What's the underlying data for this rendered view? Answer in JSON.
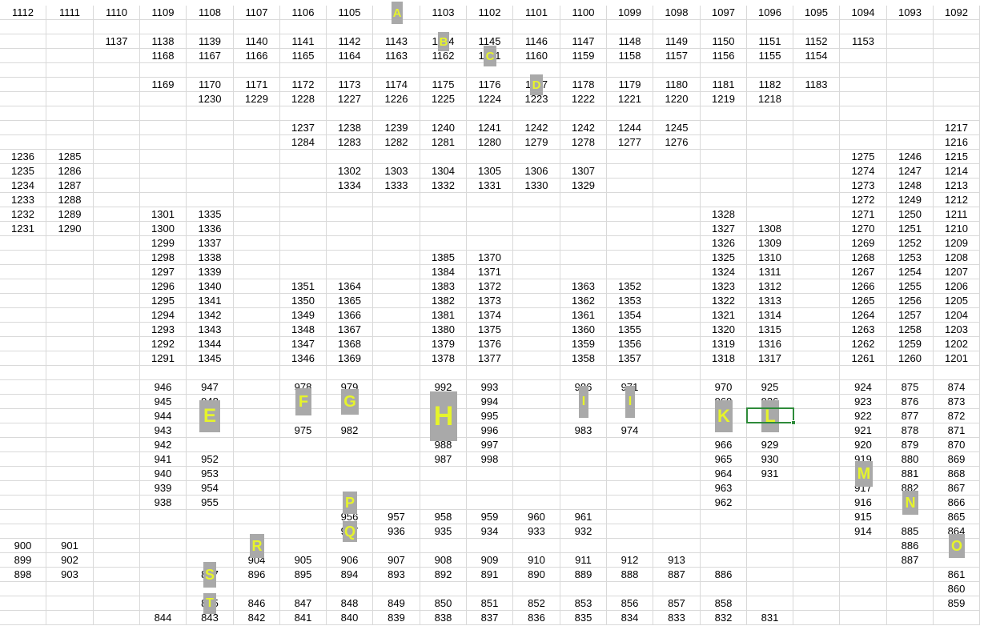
{
  "grid": {
    "column_count": 21,
    "row_count": 43,
    "last_column_partial": true,
    "gridline_color": "#d9d9d9"
  },
  "rows": [
    [
      "1112",
      "1111",
      "1110",
      "1109",
      "1108",
      "1107",
      "1106",
      "1105",
      "",
      "1103",
      "1102",
      "1101",
      "1100",
      "1099",
      "1098",
      "1097",
      "1096",
      "1095",
      "1094",
      "1093",
      "1092"
    ],
    [],
    [
      "",
      "",
      "1137",
      "1138",
      "1139",
      "1140",
      "1141",
      "1142",
      "1143",
      "1144",
      "1145",
      "1146",
      "1147",
      "1148",
      "1149",
      "1150",
      "1151",
      "1152",
      "1153"
    ],
    [
      "",
      "",
      "",
      "1168",
      "1167",
      "1166",
      "1165",
      "1164",
      "1163",
      "1162",
      "1161",
      "1160",
      "1159",
      "1158",
      "1157",
      "1156",
      "1155",
      "1154"
    ],
    [],
    [
      "",
      "",
      "",
      "1169",
      "1170",
      "1171",
      "1172",
      "1173",
      "1174",
      "1175",
      "1176",
      "1177",
      "1178",
      "1179",
      "1180",
      "1181",
      "1182",
      "1183"
    ],
    [
      "",
      "",
      "",
      "",
      "1230",
      "1229",
      "1228",
      "1227",
      "1226",
      "1225",
      "1224",
      "1223",
      "1222",
      "1221",
      "1220",
      "1219",
      "1218"
    ],
    [],
    [
      "",
      "",
      "",
      "",
      "",
      "",
      "1237",
      "1238",
      "1239",
      "1240",
      "1241",
      "1242",
      "1242",
      "1244",
      "1245",
      "",
      "",
      "",
      "",
      "",
      "1217"
    ],
    [
      "",
      "",
      "",
      "",
      "",
      "",
      "1284",
      "1283",
      "1282",
      "1281",
      "1280",
      "1279",
      "1278",
      "1277",
      "1276",
      "",
      "",
      "",
      "",
      "",
      "1216"
    ],
    [
      "1236",
      "1285",
      "",
      "",
      "",
      "",
      "",
      "",
      "",
      "",
      "",
      "",
      "",
      "",
      "",
      "",
      "",
      "",
      "1275",
      "1246",
      "1215"
    ],
    [
      "1235",
      "1286",
      "",
      "",
      "",
      "",
      "",
      "1302",
      "1303",
      "1304",
      "1305",
      "1306",
      "1307",
      "",
      "",
      "",
      "",
      "",
      "1274",
      "1247",
      "1214"
    ],
    [
      "1234",
      "1287",
      "",
      "",
      "",
      "",
      "",
      "1334",
      "1333",
      "1332",
      "1331",
      "1330",
      "1329",
      "",
      "",
      "",
      "",
      "",
      "1273",
      "1248",
      "1213"
    ],
    [
      "1233",
      "1288",
      "",
      "",
      "",
      "",
      "",
      "",
      "",
      "",
      "",
      "",
      "",
      "",
      "",
      "",
      "",
      "",
      "1272",
      "1249",
      "1212"
    ],
    [
      "1232",
      "1289",
      "",
      "1301",
      "1335",
      "",
      "",
      "",
      "",
      "",
      "",
      "",
      "",
      "",
      "",
      "1328",
      "",
      "",
      "1271",
      "1250",
      "1211"
    ],
    [
      "1231",
      "1290",
      "",
      "1300",
      "1336",
      "",
      "",
      "",
      "",
      "",
      "",
      "",
      "",
      "",
      "",
      "1327",
      "1308",
      "",
      "1270",
      "1251",
      "1210"
    ],
    [
      "",
      "",
      "",
      "1299",
      "1337",
      "",
      "",
      "",
      "",
      "",
      "",
      "",
      "",
      "",
      "",
      "1326",
      "1309",
      "",
      "1269",
      "1252",
      "1209"
    ],
    [
      "",
      "",
      "",
      "1298",
      "1338",
      "",
      "",
      "",
      "",
      "1385",
      "1370",
      "",
      "",
      "",
      "",
      "1325",
      "1310",
      "",
      "1268",
      "1253",
      "1208"
    ],
    [
      "",
      "",
      "",
      "1297",
      "1339",
      "",
      "",
      "",
      "",
      "1384",
      "1371",
      "",
      "",
      "",
      "",
      "1324",
      "1311",
      "",
      "1267",
      "1254",
      "1207"
    ],
    [
      "",
      "",
      "",
      "1296",
      "1340",
      "",
      "1351",
      "1364",
      "",
      "1383",
      "1372",
      "",
      "1363",
      "1352",
      "",
      "1323",
      "1312",
      "",
      "1266",
      "1255",
      "1206"
    ],
    [
      "",
      "",
      "",
      "1295",
      "1341",
      "",
      "1350",
      "1365",
      "",
      "1382",
      "1373",
      "",
      "1362",
      "1353",
      "",
      "1322",
      "1313",
      "",
      "1265",
      "1256",
      "1205"
    ],
    [
      "",
      "",
      "",
      "1294",
      "1342",
      "",
      "1349",
      "1366",
      "",
      "1381",
      "1374",
      "",
      "1361",
      "1354",
      "",
      "1321",
      "1314",
      "",
      "1264",
      "1257",
      "1204"
    ],
    [
      "",
      "",
      "",
      "1293",
      "1343",
      "",
      "1348",
      "1367",
      "",
      "1380",
      "1375",
      "",
      "1360",
      "1355",
      "",
      "1320",
      "1315",
      "",
      "1263",
      "1258",
      "1203"
    ],
    [
      "",
      "",
      "",
      "1292",
      "1344",
      "",
      "1347",
      "1368",
      "",
      "1379",
      "1376",
      "",
      "1359",
      "1356",
      "",
      "1319",
      "1316",
      "",
      "1262",
      "1259",
      "1202"
    ],
    [
      "",
      "",
      "",
      "1291",
      "1345",
      "",
      "1346",
      "1369",
      "",
      "1378",
      "1377",
      "",
      "1358",
      "1357",
      "",
      "1318",
      "1317",
      "",
      "1261",
      "1260",
      "1201"
    ],
    [],
    [
      "",
      "",
      "",
      "946",
      "947",
      "",
      "978",
      "979",
      "",
      "992",
      "993",
      "",
      "986",
      "971",
      "",
      "970",
      "925",
      "",
      "924",
      "875",
      "874"
    ],
    [
      "",
      "",
      "",
      "945",
      "948",
      "",
      "",
      "",
      "",
      "",
      "994",
      "",
      "",
      "",
      "",
      "969",
      "926",
      "",
      "923",
      "876",
      "873"
    ],
    [
      "",
      "",
      "",
      "944",
      "",
      "",
      "",
      "",
      "",
      "",
      "995",
      "",
      "",
      "",
      "",
      "",
      "",
      "",
      "922",
      "877",
      "872"
    ],
    [
      "",
      "",
      "",
      "943",
      "",
      "",
      "975",
      "982",
      "",
      "",
      "996",
      "",
      "983",
      "974",
      "",
      "",
      "",
      "",
      "921",
      "878",
      "871"
    ],
    [
      "",
      "",
      "",
      "942",
      "",
      "",
      "",
      "",
      "",
      "988",
      "997",
      "",
      "",
      "",
      "",
      "966",
      "929",
      "",
      "920",
      "879",
      "870"
    ],
    [
      "",
      "",
      "",
      "941",
      "952",
      "",
      "",
      "",
      "",
      "987",
      "998",
      "",
      "",
      "",
      "",
      "965",
      "930",
      "",
      "919",
      "880",
      "869"
    ],
    [
      "",
      "",
      "",
      "940",
      "953",
      "",
      "",
      "",
      "",
      "",
      "",
      "",
      "",
      "",
      "",
      "964",
      "931",
      "",
      "",
      "881",
      "868"
    ],
    [
      "",
      "",
      "",
      "939",
      "954",
      "",
      "",
      "",
      "",
      "",
      "",
      "",
      "",
      "",
      "",
      "963",
      "",
      "",
      "917",
      "882",
      "867"
    ],
    [
      "",
      "",
      "",
      "938",
      "955",
      "",
      "",
      "",
      "",
      "",
      "",
      "",
      "",
      "",
      "",
      "962",
      "",
      "",
      "916",
      "",
      "866"
    ],
    [
      "",
      "",
      "",
      "",
      "",
      "",
      "",
      "956",
      "957",
      "958",
      "959",
      "960",
      "961",
      "",
      "",
      "",
      "",
      "",
      "915",
      "",
      "865"
    ],
    [
      "",
      "",
      "",
      "",
      "",
      "",
      "",
      "937",
      "936",
      "935",
      "934",
      "933",
      "932",
      "",
      "",
      "",
      "",
      "",
      "914",
      "885",
      "864"
    ],
    [
      "900",
      "901",
      "",
      "",
      "",
      "",
      "",
      "",
      "",
      "",
      "",
      "",
      "",
      "",
      "",
      "",
      "",
      "",
      "",
      "886",
      ""
    ],
    [
      "899",
      "902",
      "",
      "",
      "",
      "904",
      "905",
      "906",
      "907",
      "908",
      "909",
      "910",
      "911",
      "912",
      "913",
      "",
      "",
      "",
      "",
      "887",
      ""
    ],
    [
      "898",
      "903",
      "",
      "",
      "897",
      "896",
      "895",
      "894",
      "893",
      "892",
      "891",
      "890",
      "889",
      "888",
      "887",
      "886",
      "",
      "",
      "",
      "",
      "861"
    ],
    [
      "",
      "",
      "",
      "",
      "",
      "",
      "",
      "",
      "",
      "",
      "",
      "",
      "",
      "",
      "",
      "",
      "",
      "",
      "",
      "",
      "860"
    ],
    [
      "",
      "",
      "",
      "",
      "845",
      "846",
      "847",
      "848",
      "849",
      "850",
      "851",
      "852",
      "853",
      "856",
      "857",
      "858",
      "",
      "",
      "",
      "",
      "859"
    ],
    [
      "",
      "",
      "",
      "844",
      "843",
      "842",
      "841",
      "840",
      "839",
      "838",
      "837",
      "836",
      "835",
      "834",
      "833",
      "832",
      "831",
      "",
      "",
      "",
      ""
    ]
  ],
  "badges": [
    {
      "label": "A",
      "name": "badge-a",
      "row": 0,
      "col": 8
    },
    {
      "label": "B",
      "name": "badge-b",
      "row": 2,
      "col": 9
    },
    {
      "label": "C",
      "name": "badge-c",
      "row": 3,
      "col": 10
    },
    {
      "label": "D",
      "name": "badge-d",
      "row": 5,
      "col": 11
    },
    {
      "label": "E",
      "name": "badge-e",
      "row": 28,
      "col": 4
    },
    {
      "label": "F",
      "name": "badge-f",
      "row": 27,
      "col": 6
    },
    {
      "label": "G",
      "name": "badge-g",
      "row": 27,
      "col": 7
    },
    {
      "label": "H",
      "name": "badge-h",
      "row": 28,
      "col": 9
    },
    {
      "label": "I",
      "name": "badge-i-left",
      "row": 27,
      "col": 12
    },
    {
      "label": "I",
      "name": "badge-i-right",
      "row": 27,
      "col": 13
    },
    {
      "label": "K",
      "name": "badge-k",
      "row": 28,
      "col": 15
    },
    {
      "label": "L",
      "name": "badge-l",
      "row": 28,
      "col": 16
    },
    {
      "label": "M",
      "name": "badge-m",
      "row": 32,
      "col": 18
    },
    {
      "label": "N",
      "name": "badge-n",
      "row": 34,
      "col": 19
    },
    {
      "label": "O",
      "name": "badge-o",
      "row": 37,
      "col": 20
    },
    {
      "label": "P",
      "name": "badge-p",
      "row": 34,
      "col": 7
    },
    {
      "label": "Q",
      "name": "badge-q",
      "row": 36,
      "col": 7
    },
    {
      "label": "R",
      "name": "badge-r",
      "row": 37,
      "col": 5
    },
    {
      "label": "S",
      "name": "badge-s",
      "row": 39,
      "col": 4
    },
    {
      "label": "T",
      "name": "badge-t",
      "row": 41,
      "col": 4
    }
  ],
  "selected_cell": {
    "row": 28,
    "col": 16
  },
  "colors": {
    "badge_bg": "#a9a9a9",
    "badge_text": "#e6f42b",
    "selection_border": "#2e8b3a",
    "grid_line": "#d9d9d9"
  }
}
